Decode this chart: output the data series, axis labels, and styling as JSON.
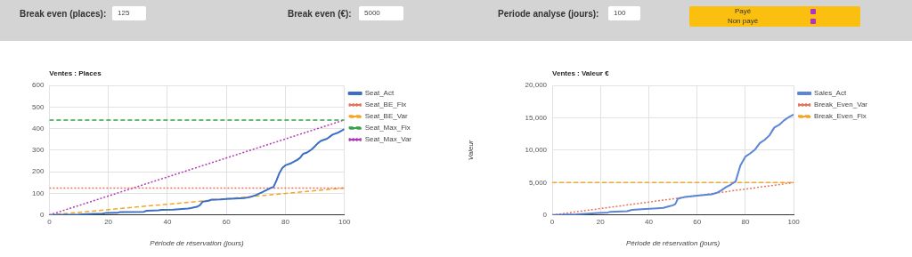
{
  "chart_data": [
    {
      "type": "other",
      "annotations": [
        "Break even (places):",
        "125",
        "Break even (€):",
        "5000",
        "Periode analyse (jours):",
        "100",
        "Payé",
        "Non payé"
      ]
    },
    {
      "type": "line",
      "title": "Ventes : Places",
      "xlabel": "Période de réservation (jours)",
      "xlim": [
        0,
        100
      ],
      "xticks": [
        0,
        20,
        40,
        60,
        80,
        100
      ],
      "ylim": [
        0,
        600
      ],
      "yticks": [
        0,
        100,
        200,
        300,
        400,
        500,
        600
      ],
      "grid": true,
      "legend": "top right",
      "marker": "none",
      "series": [
        {
          "name": "Seat_Act",
          "color": "#3b6fc4",
          "line_style": "solid",
          "x": [
            0,
            10,
            15,
            18,
            19,
            23,
            24,
            32,
            33,
            37,
            38,
            42,
            44,
            47,
            48,
            50,
            51,
            52,
            54,
            55,
            58,
            60,
            66,
            68,
            70,
            72,
            74,
            75,
            76,
            77,
            78,
            79,
            80,
            82,
            84,
            85,
            86,
            87,
            88,
            89,
            90,
            91,
            92,
            93,
            94,
            95,
            96,
            98,
            99,
            100
          ],
          "values": [
            0,
            2,
            5,
            6,
            9,
            10,
            14,
            15,
            20,
            22,
            24,
            25,
            27,
            30,
            32,
            38,
            45,
            62,
            66,
            71,
            72,
            74,
            78,
            83,
            92,
            105,
            118,
            125,
            130,
            160,
            195,
            218,
            230,
            240,
            255,
            265,
            283,
            287,
            295,
            305,
            318,
            332,
            343,
            348,
            352,
            362,
            372,
            382,
            390,
            398
          ]
        },
        {
          "name": "Seat_BE_Fix",
          "color": "#e8735a",
          "line_style": "dotted",
          "x": [
            0,
            100
          ],
          "values": [
            125,
            125
          ]
        },
        {
          "name": "Seat_BE_Var",
          "color": "#f5a623",
          "line_style": "dashed",
          "x": [
            0,
            100
          ],
          "values": [
            0,
            125
          ]
        },
        {
          "name": "Seat_Max_Fix",
          "color": "#3aa14a",
          "line_style": "dashed",
          "x": [
            0,
            100
          ],
          "values": [
            440,
            440
          ]
        },
        {
          "name": "Seat_Max_Var",
          "color": "#b03ab8",
          "line_style": "dotted",
          "x": [
            0,
            100
          ],
          "values": [
            0,
            440
          ]
        }
      ]
    },
    {
      "type": "line",
      "title": "Ventes : Valeur €",
      "xlabel": "Période de réservation (jours)",
      "ylabel": "Valeur",
      "xlim": [
        0,
        100
      ],
      "xticks": [
        0,
        20,
        40,
        60,
        80,
        100
      ],
      "ylim": [
        0,
        20000
      ],
      "yticks": [
        0,
        {
          "value": 5000,
          "label": "5,000"
        },
        {
          "value": 10000,
          "label": "10,000"
        },
        {
          "value": 15000,
          "label": "15,000"
        },
        {
          "value": 20000,
          "label": "20,000"
        }
      ],
      "grid": true,
      "legend": "top right",
      "marker": "none",
      "series": [
        {
          "name": "Sales_Act",
          "color": "#5b85d6",
          "line_style": "solid",
          "x": [
            0,
            10,
            15,
            19,
            23,
            24,
            31,
            33,
            37,
            42,
            46,
            48,
            50,
            51,
            52,
            55,
            60,
            66,
            68,
            70,
            72,
            74,
            76,
            77,
            78,
            80,
            82,
            84,
            86,
            88,
            90,
            92,
            94,
            96,
            98,
            100
          ],
          "values": [
            0,
            100,
            200,
            300,
            400,
            500,
            600,
            800,
            900,
            1000,
            1100,
            1300,
            1500,
            1700,
            2500,
            2800,
            3000,
            3200,
            3400,
            3800,
            4300,
            4700,
            5200,
            6500,
            7700,
            9000,
            9500,
            10100,
            11100,
            11600,
            12300,
            13500,
            13900,
            14600,
            15100,
            15500
          ]
        },
        {
          "name": "Break_Even_Var",
          "color": "#e8735a",
          "line_style": "dotted",
          "x": [
            0,
            100
          ],
          "values": [
            0,
            5000
          ]
        },
        {
          "name": "Break_Even_Fix",
          "color": "#f5a623",
          "line_style": "dashed",
          "x": [
            0,
            100
          ],
          "values": [
            5000,
            5000
          ]
        }
      ]
    }
  ]
}
